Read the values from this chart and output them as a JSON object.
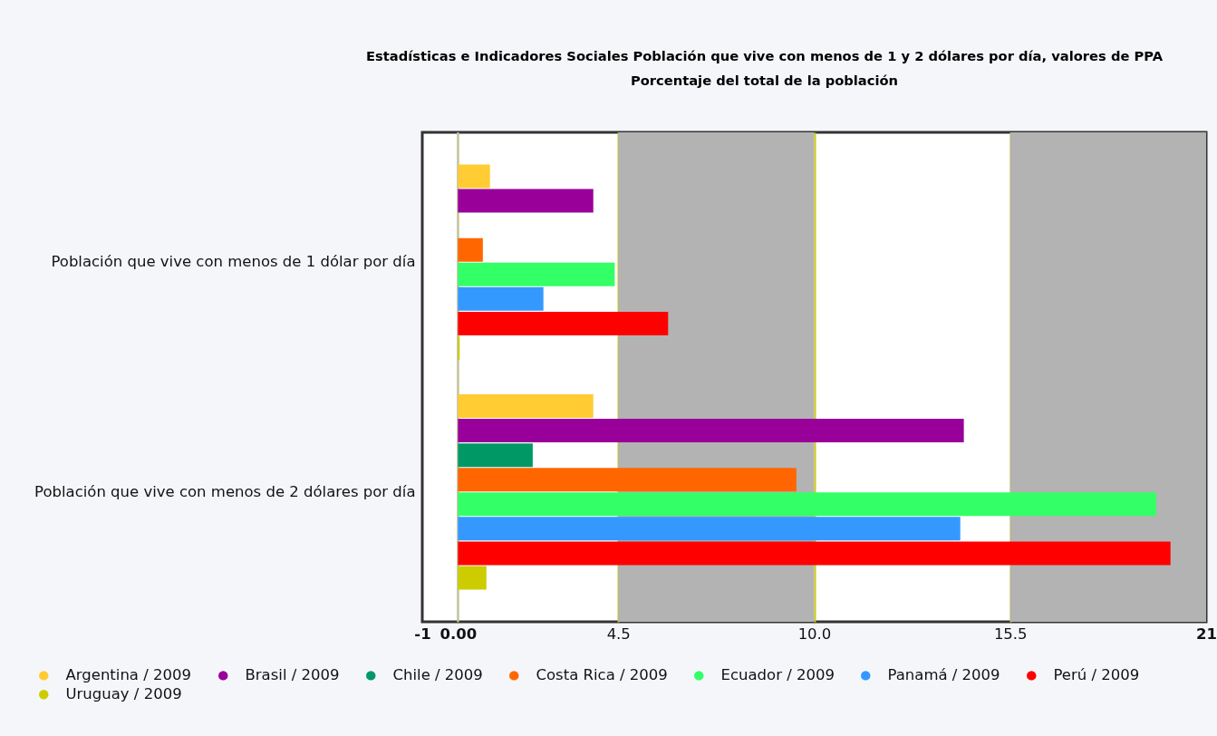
{
  "chart_data": {
    "type": "bar",
    "orientation": "horizontal",
    "title": "Estadísticas e Indicadores Sociales Población que vive con menos de 1 y 2 dólares por día, valores de PPA",
    "subtitle": "Porcentaje del total de la población",
    "categories": [
      "Población que vive con menos de 1 dólar por día",
      "Población que vive con menos de 2 dólares por día"
    ],
    "series": [
      {
        "name": "Argentina / 2009",
        "color": "#ffcc33",
        "values": [
          0.9,
          3.8
        ]
      },
      {
        "name": "Brasil / 2009",
        "color": "#990099",
        "values": [
          3.8,
          14.2
        ]
      },
      {
        "name": "Chile / 2009",
        "color": "#009966",
        "values": [
          null,
          2.1
        ]
      },
      {
        "name": "Costa Rica / 2009",
        "color": "#ff6600",
        "values": [
          0.7,
          9.5
        ]
      },
      {
        "name": "Ecuador / 2009",
        "color": "#33ff66",
        "values": [
          4.4,
          19.6
        ]
      },
      {
        "name": "Panamá / 2009",
        "color": "#3399ff",
        "values": [
          2.4,
          14.1
        ]
      },
      {
        "name": "Perú / 2009",
        "color": "#ff0000",
        "values": [
          5.9,
          20.0
        ]
      },
      {
        "name": "Uruguay / 2009",
        "color": "#cccc00",
        "values": [
          0.05,
          0.8
        ]
      }
    ],
    "xlim": [
      -1,
      21
    ],
    "xticks": [
      -1,
      {
        "value": 0,
        "label": "0.00"
      },
      4.5,
      {
        "value": 10,
        "label": "10.0"
      },
      15.5,
      21
    ],
    "grid": "x",
    "legend": "bottom",
    "bands": [
      {
        "axis": "x",
        "from": 4.5,
        "to": 10,
        "color": "#b3b3b3"
      },
      {
        "axis": "x",
        "from": 15.5,
        "to": 21,
        "color": "#b3b3b3"
      }
    ],
    "ref_lines": [
      {
        "axis": "x",
        "value": 0,
        "color": "#c0c0c0"
      }
    ]
  }
}
